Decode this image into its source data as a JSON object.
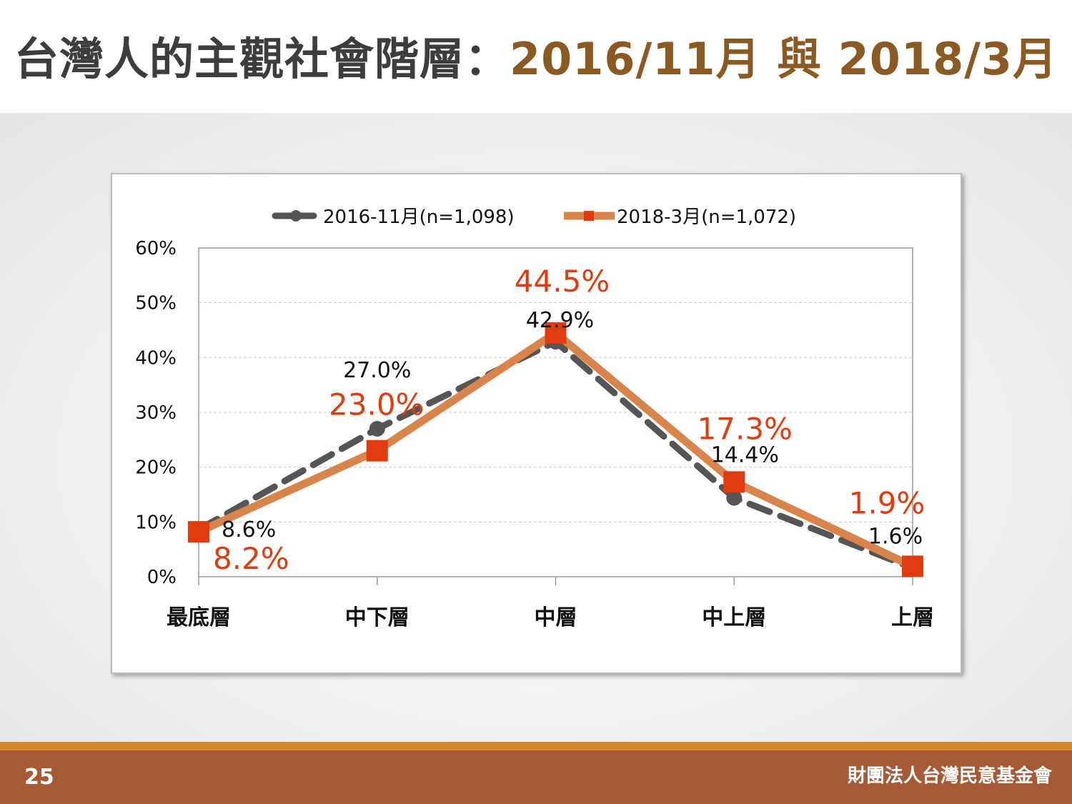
{
  "slide": {
    "title_main": "台灣人的主觀社會階層：",
    "title_accent": "2016/11月 與 2018/3月",
    "page_number": "25",
    "organization": "財團法人台灣民意基金會"
  },
  "colors": {
    "series_2016": "#555555",
    "series_2018_line": "#d9844a",
    "series_2018_marker": "#e03c0f",
    "label_2018": "#e03c0f",
    "title_accent": "#8b5a22",
    "footer": "#a65a35"
  },
  "chart_data": {
    "type": "line",
    "title": "",
    "xlabel": "",
    "ylabel": "",
    "categories": [
      "最底層",
      "中下層",
      "中層",
      "中上層",
      "上層"
    ],
    "ylim": [
      0,
      60
    ],
    "yticks": [
      "0%",
      "10%",
      "20%",
      "30%",
      "40%",
      "50%",
      "60%"
    ],
    "grid": true,
    "legend_position": "top",
    "series": [
      {
        "name": "2016-11月(n=1,098)",
        "values": [
          8.6,
          27.0,
          42.9,
          14.4,
          1.6
        ],
        "labels": [
          "8.6%",
          "27.0%",
          "42.9%",
          "14.4%",
          "1.6%"
        ],
        "style": "dashed",
        "marker": "circle"
      },
      {
        "name": "2018-3月(n=1,072)",
        "values": [
          8.2,
          23.0,
          44.5,
          17.3,
          1.9
        ],
        "labels": [
          "8.2%",
          "23.0%",
          "44.5%",
          "17.3%",
          "1.9%"
        ],
        "style": "solid",
        "marker": "square"
      }
    ]
  }
}
